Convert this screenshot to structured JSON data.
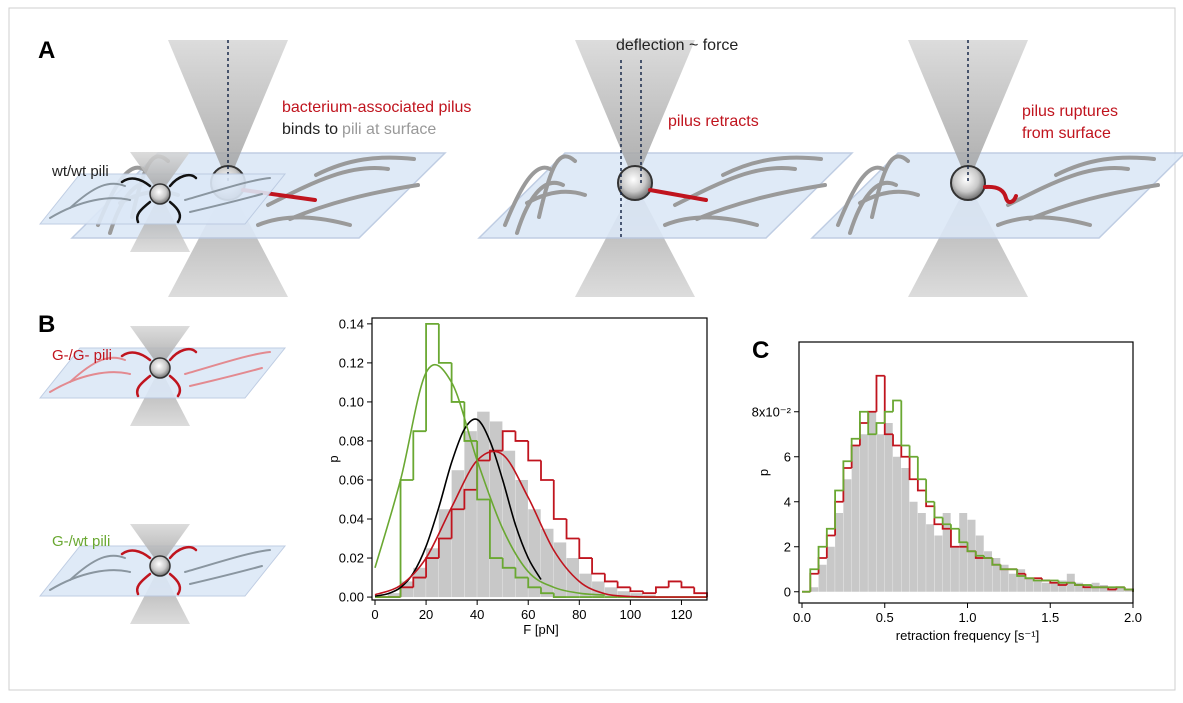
{
  "panel_labels": [
    "A",
    "B",
    "C"
  ],
  "diagram_a": {
    "step_1": {
      "line_1": "bacterium-associated pilus",
      "line_2": [
        "binds to",
        "pili at surface"
      ]
    },
    "step_2": {
      "top": "deflection ~ force",
      "label": "pilus retracts"
    },
    "step_3": {
      "line_1": "pilus ruptures",
      "line_2": "from surface"
    }
  },
  "diagram_b": {
    "labels": [
      "wt/wt pili",
      "G-/G- pili",
      "G-/wt pili"
    ]
  },
  "chart_data": [
    {
      "type": "histogram",
      "x_label": "F [pN]",
      "y_label": "p",
      "xlim": [
        0,
        130
      ],
      "ylim": [
        -0.0015,
        0.143
      ],
      "xticks": [
        0,
        20,
        40,
        60,
        80,
        100,
        120
      ],
      "yticks": [
        {
          "value": 0,
          "label": "0.00"
        },
        {
          "value": 0.02,
          "label": "0.02"
        },
        {
          "value": 0.04,
          "label": "0.04"
        },
        {
          "value": 0.06,
          "label": "0.06"
        },
        {
          "value": 0.08,
          "label": "0.08"
        },
        {
          "value": 0.1,
          "label": "0.10"
        },
        {
          "value": 0.12,
          "label": "0.12"
        },
        {
          "value": 0.14,
          "label": "0.14"
        }
      ],
      "bins": [
        0,
        5,
        10,
        15,
        20,
        25,
        30,
        35,
        40,
        45,
        50,
        55,
        60,
        65,
        70,
        75,
        80,
        85,
        90,
        95,
        100,
        105,
        110,
        115,
        120,
        125,
        130
      ],
      "series": [
        {
          "style": "filled",
          "color": "#c8c8c8",
          "values": [
            0,
            0.002,
            0.008,
            0.015,
            0.025,
            0.045,
            0.065,
            0.085,
            0.095,
            0.09,
            0.075,
            0.06,
            0.045,
            0.035,
            0.028,
            0.02,
            0.012,
            0.008,
            0.005,
            0.003,
            0.002,
            0.001,
            0,
            0,
            0,
            0
          ]
        },
        {
          "style": "step",
          "color": "#c0141e",
          "values": [
            0,
            0,
            0.005,
            0.01,
            0.02,
            0.03,
            0.045,
            0.055,
            0.07,
            0.075,
            0.085,
            0.08,
            0.07,
            0.06,
            0.04,
            0.03,
            0.02,
            0.012,
            0.008,
            0.005,
            0.003,
            0.002,
            0.005,
            0.008,
            0.005,
            0.002
          ]
        },
        {
          "style": "step",
          "color": "#6aa832",
          "values": [
            0,
            0,
            0.06,
            0.085,
            0.14,
            0.12,
            0.1,
            0.08,
            0.05,
            0.02,
            0.015,
            0.01,
            0.005,
            0.002,
            0,
            0,
            0,
            0,
            0,
            0,
            0,
            0,
            0,
            0,
            0,
            0
          ]
        }
      ],
      "lines": [
        {
          "color": "#000000",
          "x": [
            0,
            5,
            10,
            15,
            20,
            25,
            30,
            35,
            40,
            45,
            50,
            55,
            60,
            65
          ],
          "values": [
            0.0005,
            0.0017,
            0.0049,
            0.0123,
            0.026,
            0.046,
            0.069,
            0.086,
            0.091,
            0.08,
            0.06,
            0.037,
            0.02,
            0.009
          ]
        },
        {
          "color": "#c0141e",
          "x": [
            0,
            10,
            20,
            30,
            40,
            50,
            60,
            70,
            80,
            90,
            100,
            110,
            120,
            130
          ],
          "values": [
            0.0012,
            0.006,
            0.02,
            0.046,
            0.07,
            0.073,
            0.051,
            0.024,
            0.008,
            0.0017,
            0.0003,
            0,
            0,
            0
          ]
        },
        {
          "color": "#6aa832",
          "x": [
            0,
            10,
            20,
            30,
            40,
            50,
            60,
            70,
            80,
            90
          ],
          "values": [
            0.015,
            0.06,
            0.115,
            0.11,
            0.07,
            0.035,
            0.013,
            0.005,
            0.002,
            0.001
          ]
        }
      ]
    },
    {
      "type": "histogram",
      "x_label": "retraction frequency [s⁻¹]",
      "y_label": "p",
      "xlim": [
        0,
        2.0
      ],
      "ylim": [
        -0.005,
        0.111
      ],
      "xticks": [
        {
          "value": 0,
          "label": "0.0"
        },
        {
          "value": 0.5,
          "label": "0.5"
        },
        {
          "value": 1,
          "label": "1.0"
        },
        {
          "value": 1.5,
          "label": "1.5"
        },
        {
          "value": 2,
          "label": "2.0"
        }
      ],
      "yticks": [
        {
          "value": 0,
          "label": "0"
        },
        {
          "value": 0.02,
          "label": "2"
        },
        {
          "value": 0.04,
          "label": "4"
        },
        {
          "value": 0.06,
          "label": "6"
        },
        {
          "value": 0.08,
          "label": "8x10⁻²"
        }
      ],
      "bins": [
        0,
        0.05,
        0.1,
        0.15,
        0.2,
        0.25,
        0.3,
        0.35,
        0.4,
        0.45,
        0.5,
        0.55,
        0.6,
        0.65,
        0.7,
        0.75,
        0.8,
        0.85,
        0.9,
        0.95,
        1,
        1.05,
        1.1,
        1.15,
        1.2,
        1.25,
        1.3,
        1.35,
        1.4,
        1.45,
        1.5,
        1.55,
        1.6,
        1.65,
        1.7,
        1.75,
        1.8,
        1.85,
        1.9,
        1.95,
        2
      ],
      "series": [
        {
          "style": "filled",
          "color": "#c8c8c8",
          "values": [
            0,
            0.002,
            0.012,
            0.02,
            0.035,
            0.05,
            0.065,
            0.07,
            0.08,
            0.07,
            0.075,
            0.06,
            0.055,
            0.04,
            0.035,
            0.03,
            0.025,
            0.035,
            0.02,
            0.035,
            0.032,
            0.025,
            0.018,
            0.015,
            0.012,
            0.008,
            0.01,
            0.006,
            0.005,
            0.004,
            0.004,
            0.005,
            0.008,
            0.004,
            0.003,
            0.004,
            0.003,
            0.002,
            0.002,
            0.001
          ]
        },
        {
          "style": "step",
          "color": "#c0141e",
          "values": [
            0,
            0.008,
            0.015,
            0.025,
            0.04,
            0.055,
            0.065,
            0.075,
            0.08,
            0.096,
            0.07,
            0.065,
            0.06,
            0.05,
            0.045,
            0.038,
            0.03,
            0.028,
            0.02,
            0.02,
            0.018,
            0.015,
            0.015,
            0.012,
            0.01,
            0.01,
            0.008,
            0.006,
            0.006,
            0.005,
            0.004,
            0.003,
            0.004,
            0.003,
            0.002,
            0.002,
            0.002,
            0.001,
            0.002,
            0.001
          ]
        },
        {
          "style": "step",
          "color": "#6aa832",
          "values": [
            0,
            0.01,
            0.02,
            0.028,
            0.045,
            0.058,
            0.068,
            0.08,
            0.07,
            0.075,
            0.08,
            0.085,
            0.065,
            0.06,
            0.05,
            0.04,
            0.033,
            0.03,
            0.028,
            0.022,
            0.018,
            0.016,
            0.015,
            0.012,
            0.01,
            0.01,
            0.007,
            0.006,
            0.005,
            0.005,
            0.005,
            0.004,
            0.004,
            0.003,
            0.003,
            0.002,
            0.002,
            0.002,
            0.002,
            0.001
          ]
        }
      ],
      "lines": []
    }
  ]
}
